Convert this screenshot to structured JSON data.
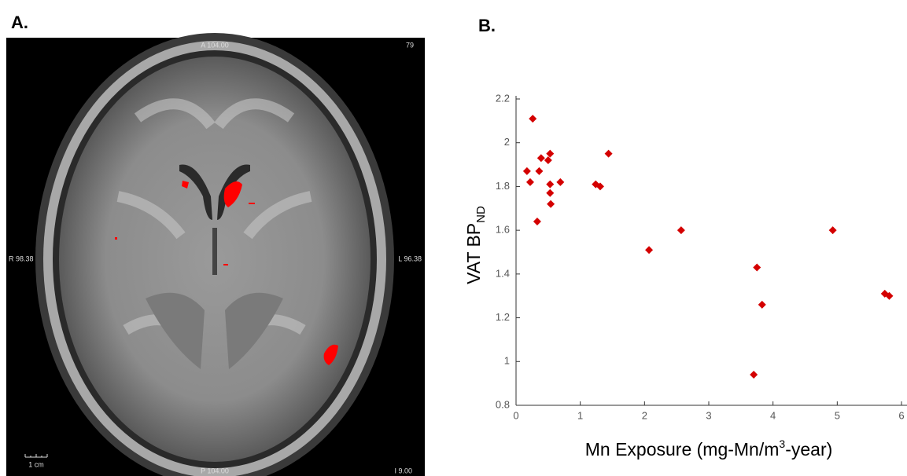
{
  "chart_data": [
    {
      "type": "image",
      "panel_label": "A.",
      "annotations": {
        "top": "A 104.00",
        "top_right": "79",
        "left": "R 98.38",
        "right": "L 96.38",
        "bottom": "P 104.00",
        "bottom_right": "I 9.00",
        "scale_bar": "1 cm"
      }
    },
    {
      "type": "scatter",
      "panel_label": "B.",
      "ylabel": [
        "VAT BP",
        "ND"
      ],
      "xlabel": [
        "Mn Exposure (mg-Mn/m",
        "3",
        "-year)"
      ],
      "color": "#d40000",
      "grid": false,
      "x": [
        0.26,
        0.17,
        0.22,
        0.39,
        0.36,
        0.53,
        0.5,
        0.69,
        0.53,
        0.53,
        0.54,
        0.33,
        1.24,
        1.31,
        1.44,
        2.07,
        2.57,
        3.75,
        3.83,
        3.7,
        4.93,
        5.74,
        5.81
      ],
      "values": [
        2.11,
        1.87,
        1.82,
        1.93,
        1.87,
        1.95,
        1.92,
        1.82,
        1.81,
        1.77,
        1.72,
        1.64,
        1.81,
        1.8,
        1.95,
        1.51,
        1.6,
        1.43,
        1.26,
        0.94,
        1.6,
        1.31,
        1.3
      ],
      "xlim": [
        0,
        6
      ],
      "xticks": [
        0,
        1,
        2,
        3,
        4,
        5,
        6
      ],
      "ylim": [
        0.8,
        2.2
      ],
      "yticks": [
        0.8,
        1,
        1.2,
        1.4,
        1.6,
        1.8,
        2,
        2.2
      ]
    }
  ]
}
